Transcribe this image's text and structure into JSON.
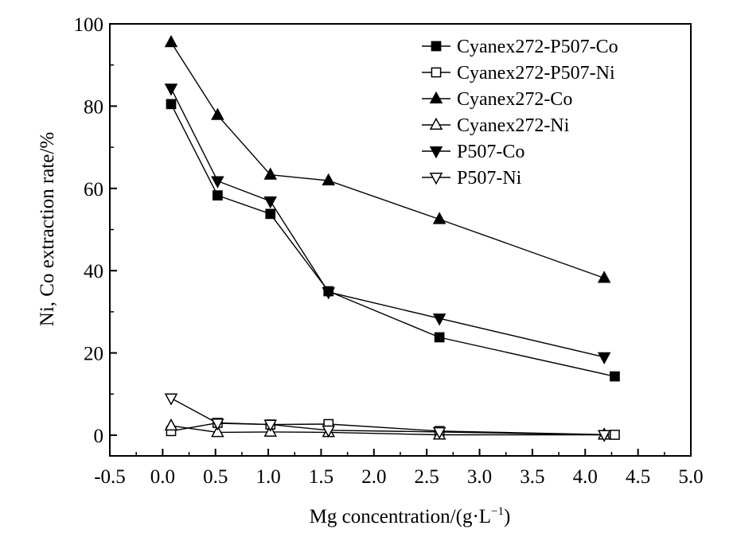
{
  "chart_data": {
    "type": "line",
    "title": "",
    "xlabel": "Mg concentration/(g·L",
    "xlabel_sup": "−1",
    "xlabel_end": ")",
    "ylabel": "Ni, Co extraction rate/%",
    "xlim": [
      -0.5,
      5.0
    ],
    "ylim": [
      0,
      100
    ],
    "x_ticks": [
      "-0.5",
      "0.0",
      "0.5",
      "1.0",
      "1.5",
      "2.0",
      "2.5",
      "3.0",
      "3.5",
      "4.0",
      "4.5",
      "5.0"
    ],
    "y_ticks": [
      "0",
      "20",
      "40",
      "60",
      "80",
      "100"
    ],
    "grid": false,
    "legend_position": "top-right",
    "series": [
      {
        "name": "Cyanex272-P507-Co",
        "marker": "square-filled",
        "points": [
          [
            0.08,
            80.5
          ],
          [
            0.52,
            58.3
          ],
          [
            1.02,
            53.8
          ],
          [
            1.57,
            35.0
          ],
          [
            2.62,
            23.8
          ],
          [
            4.28,
            14.3
          ]
        ]
      },
      {
        "name": "Cyanex272-P507-Ni",
        "marker": "square-open",
        "points": [
          [
            0.08,
            1.0
          ],
          [
            0.52,
            3.0
          ],
          [
            1.02,
            2.6
          ],
          [
            1.57,
            2.7
          ],
          [
            2.62,
            1.0
          ],
          [
            4.28,
            0.1
          ]
        ]
      },
      {
        "name": "Cyanex272-Co",
        "marker": "triangle-up-filled",
        "points": [
          [
            0.08,
            95.5
          ],
          [
            0.52,
            77.8
          ],
          [
            1.02,
            63.3
          ],
          [
            1.57,
            61.9
          ],
          [
            2.62,
            52.5
          ],
          [
            4.18,
            38.2
          ]
        ]
      },
      {
        "name": "Cyanex272-Ni",
        "marker": "triangle-up-open",
        "points": [
          [
            0.08,
            2.3
          ],
          [
            0.52,
            0.7
          ],
          [
            1.02,
            0.8
          ],
          [
            1.57,
            0.7
          ],
          [
            2.62,
            0.1
          ],
          [
            4.18,
            0.1
          ]
        ]
      },
      {
        "name": "P507-Co",
        "marker": "triangle-down-filled",
        "points": [
          [
            0.08,
            84.3
          ],
          [
            0.52,
            61.8
          ],
          [
            1.02,
            56.9
          ],
          [
            1.57,
            34.8
          ],
          [
            2.62,
            28.4
          ],
          [
            4.18,
            19.0
          ]
        ]
      },
      {
        "name": "P507-Ni",
        "marker": "triangle-down-open",
        "points": [
          [
            0.08,
            9.0
          ],
          [
            0.52,
            2.9
          ],
          [
            1.02,
            2.6
          ],
          [
            1.57,
            1.2
          ],
          [
            2.62,
            0.8
          ],
          [
            4.18,
            0.1
          ]
        ]
      }
    ]
  }
}
